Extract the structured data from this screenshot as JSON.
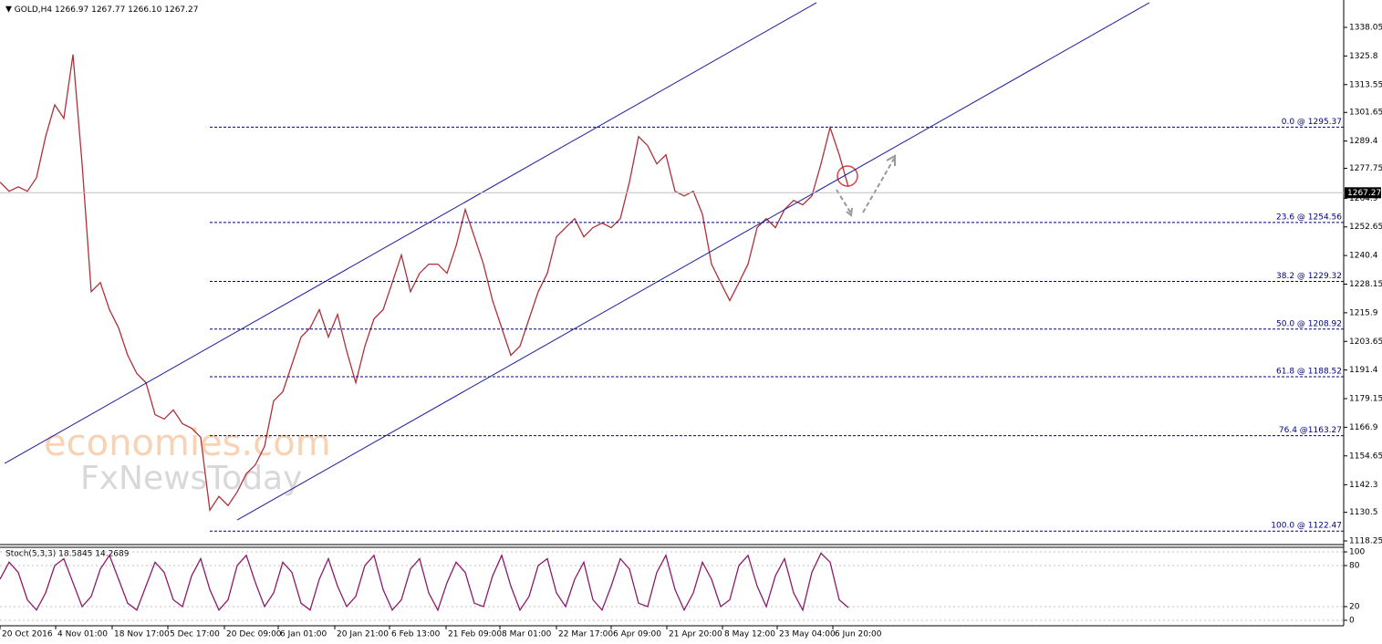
{
  "chart_data": [
    {
      "type": "line",
      "title": "GOLD,H4  1266.97 1267.77 1266.10 1267.27",
      "watermark": [
        "economies.com",
        "FxNewsToday"
      ],
      "series": [
        {
          "name": "GOLD",
          "color": "#b0303a",
          "values": [
            1271.8,
            1267.9,
            1269.8,
            1267.9,
            1273.7,
            1291.3,
            1304.9,
            1299.1,
            1326.4,
            1279.6,
            1224.9,
            1228.8,
            1217.2,
            1209.4,
            1197.7,
            1189.9,
            1186.0,
            1172.3,
            1170.4,
            1174.3,
            1168.4,
            1166.5,
            1162.6,
            1131.4,
            1137.3,
            1133.4,
            1139.2,
            1147.0,
            1150.9,
            1158.7,
            1178.2,
            1182.1,
            1193.8,
            1205.5,
            1209.4,
            1217.2,
            1205.5,
            1215.2,
            1199.6,
            1186.0,
            1201.6,
            1213.3,
            1217.2,
            1228.8,
            1240.6,
            1224.9,
            1232.8,
            1236.7,
            1236.7,
            1232.8,
            1244.5,
            1260.1,
            1248.4,
            1236.7,
            1221.1,
            1209.4,
            1197.7,
            1201.6,
            1213.3,
            1224.9,
            1232.8,
            1248.4,
            1252.3,
            1256.2,
            1248.4,
            1252.3,
            1254.3,
            1252.3,
            1256.2,
            1271.8,
            1291.3,
            1287.4,
            1279.6,
            1283.5,
            1267.9,
            1265.9,
            1267.9,
            1258.1,
            1236.7,
            1228.8,
            1221.1,
            1228.8,
            1236.7,
            1252.3,
            1256.2,
            1252.3,
            1260.1,
            1264.0,
            1262.1,
            1265.9,
            1279.6,
            1295.2,
            1283.5,
            1269.8
          ]
        }
      ],
      "xlim": [
        0,
        147.3
      ],
      "xticks": [
        {
          "value": 0,
          "label": "20 Oct 2016"
        },
        {
          "value": 6.1,
          "label": "4 Nov 01:00"
        },
        {
          "value": 12.3,
          "label": "18 Nov 17:00"
        },
        {
          "value": 18.4,
          "label": "5 Dec 17:00"
        },
        {
          "value": 24.6,
          "label": "20 Dec 09:00"
        },
        {
          "value": 30.5,
          "label": "6 Jan 01:00"
        },
        {
          "value": 36.7,
          "label": "20 Jan 21:00"
        },
        {
          "value": 42.7,
          "label": "6 Feb 13:00"
        },
        {
          "value": 48.9,
          "label": "21 Feb 09:00"
        },
        {
          "value": 54.8,
          "label": "8 Mar 01:00"
        },
        {
          "value": 61,
          "label": "22 Mar 17:00"
        },
        {
          "value": 67,
          "label": "6 Apr 09:00"
        },
        {
          "value": 73.1,
          "label": "21 Apr 20:00"
        },
        {
          "value": 79.2,
          "label": "8 May 12:00"
        },
        {
          "value": 85.2,
          "label": "23 May 04:00"
        },
        {
          "value": 91.3,
          "label": "6 Jun 20:00"
        }
      ],
      "ylim": [
        1116.69,
        1349.76
      ],
      "yticks": [
        1338.05,
        1325.8,
        1313.55,
        1301.65,
        1289.4,
        1277.75,
        1264.9,
        1252.65,
        1240.4,
        1228.15,
        1215.9,
        1203.65,
        1191.4,
        1179.15,
        1166.9,
        1154.65,
        1142.3,
        1130.5,
        1118.25
      ],
      "current_price": 1267.27,
      "levels": [
        {
          "value": 1295.37,
          "label": "0.0 @ 1295.37"
        },
        {
          "value": 1254.56,
          "label": "23.6 @ 1254.56"
        },
        {
          "value": 1229.32,
          "label": "38.2 @ 1229.32"
        },
        {
          "value": 1208.92,
          "label": "50.0 @ 1208.92"
        },
        {
          "value": 1188.52,
          "label": "61.8 @ 1188.52"
        },
        {
          "value": 1163.27,
          "label": "76.4 @1163.27"
        },
        {
          "value": 1122.47,
          "label": "100.0 @ 1122.47"
        }
      ],
      "level_start": 23,
      "trendlines": [
        [
          [
            0.5,
            1151.4
          ],
          [
            89.5,
            1348.6
          ]
        ],
        [
          [
            26,
            1127.2
          ],
          [
            126,
            1348.6
          ]
        ]
      ],
      "trendline_color": "#1c1c9c"
    },
    {
      "type": "line",
      "title": "Stoch(5,3,3) 18.5845 14.2689",
      "series": [
        {
          "name": "Stoch",
          "color": "#8b1a6b",
          "values": [
            60,
            85,
            70,
            30,
            15,
            40,
            80,
            90,
            55,
            20,
            35,
            75,
            95,
            60,
            25,
            15,
            50,
            85,
            70,
            30,
            20,
            65,
            90,
            45,
            15,
            30,
            80,
            95,
            55,
            20,
            40,
            85,
            70,
            25,
            15,
            60,
            90,
            50,
            20,
            35,
            80,
            95,
            45,
            15,
            30,
            75,
            90,
            40,
            15,
            55,
            85,
            70,
            25,
            20,
            65,
            95,
            50,
            15,
            35,
            80,
            90,
            40,
            20,
            60,
            85,
            30,
            15,
            50,
            90,
            75,
            25,
            20,
            70,
            95,
            45,
            15,
            40,
            85,
            60,
            20,
            30,
            80,
            95,
            50,
            20,
            65,
            90,
            40,
            15,
            70,
            98,
            85,
            30,
            18.58
          ]
        }
      ],
      "ylim": [
        -8,
        106.7
      ],
      "yticks": [
        100,
        80,
        20,
        0
      ]
    }
  ]
}
